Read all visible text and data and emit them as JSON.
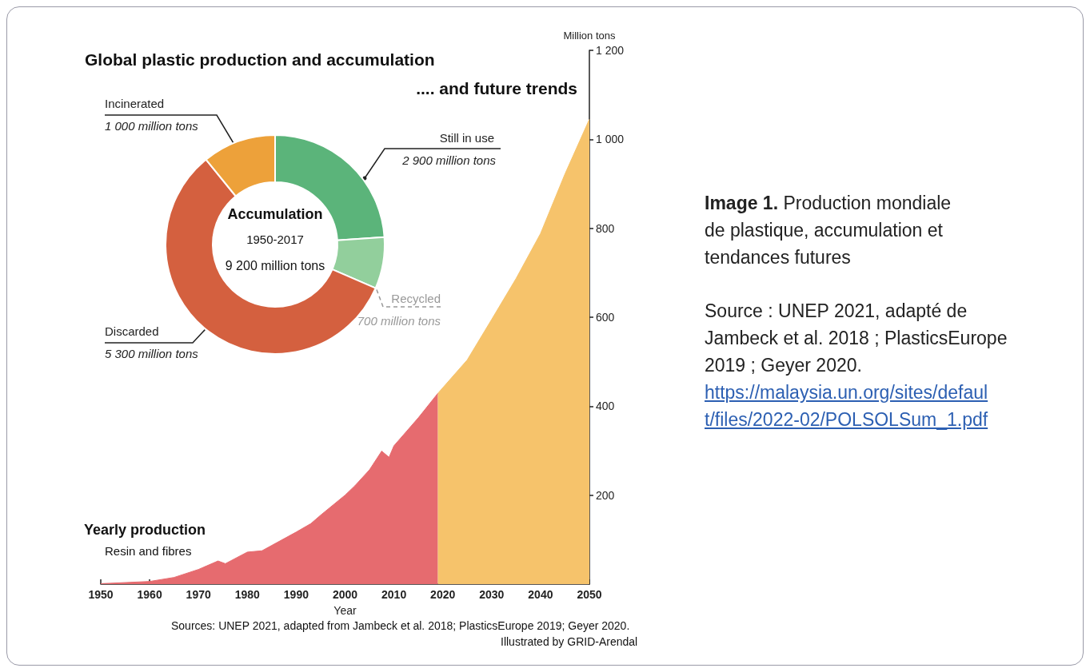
{
  "chart_data": [
    {
      "type": "area",
      "title": "Global plastic production and accumulation",
      "subtitle": ".... and future trends",
      "xlabel": "Year",
      "ylabel": "Million tons",
      "series": [
        {
          "color": "#e66b6f",
          "x": [
            1950,
            1960,
            1965,
            1970,
            1974,
            1975.5,
            1980,
            1983,
            1985,
            1990,
            1993,
            1995,
            2000,
            2002,
            2005,
            2007.5,
            2009,
            2010,
            2015,
            2019
          ],
          "values": [
            1,
            6,
            15,
            33,
            52,
            46,
            72,
            75,
            87,
            117,
            136,
            155,
            200,
            221,
            257,
            299,
            285,
            311,
            374,
            429
          ]
        },
        {
          "color": "#f6c36b",
          "x": [
            2019,
            2025,
            2030,
            2035,
            2040,
            2045,
            2050
          ],
          "values": [
            429,
            504,
            595,
            687,
            788,
            922,
            1045
          ]
        }
      ],
      "xlim": [
        1950,
        2050
      ],
      "xticks": [
        1950,
        1960,
        1970,
        1980,
        1990,
        2000,
        2010,
        2020,
        2030,
        2040,
        2050
      ],
      "ylim": [
        0,
        1200
      ],
      "yticks": [
        200,
        400,
        600,
        800,
        {
          "value": 1000,
          "label": "1 000"
        },
        {
          "value": 1200,
          "label": "1 200"
        }
      ],
      "annotations": [
        "Yearly production",
        "Resin and fibres",
        "Sources: UNEP 2021, adapted from Jambeck et al. 2018; PlasticsEurope 2019; Geyer 2020.",
        "Illustrated by GRID-Arendal"
      ]
    },
    {
      "type": "donut",
      "categories": [
        "Still in use",
        "Recycled",
        "Discarded",
        "Incinerated"
      ],
      "values": [
        2200,
        700,
        5300,
        1000
      ],
      "colors": [
        "#5bb47a",
        "#92cf9c",
        "#d4603f",
        "#eda13a"
      ],
      "value_labels": [
        null,
        "700 million tons",
        "5 300 million tons",
        "1 000 million tons"
      ],
      "annotations": [
        "Accumulation",
        "1950-2017",
        "9 200 million tons",
        "2 900 million tons"
      ]
    },
    {
      "type": "other",
      "title": "Image 1.",
      "subtitle": "Production mondiale de plastique, accumulation et tendances futures",
      "annotations": [
        "Source : UNEP 2021, adapté de Jambeck et al. 2018 ; PlasticsEurope 2019 ; Geyer 2020.",
        "https://malaysia.un.org/sites/default/files/2022-02/POLSOLSum_1.pdf"
      ]
    }
  ]
}
